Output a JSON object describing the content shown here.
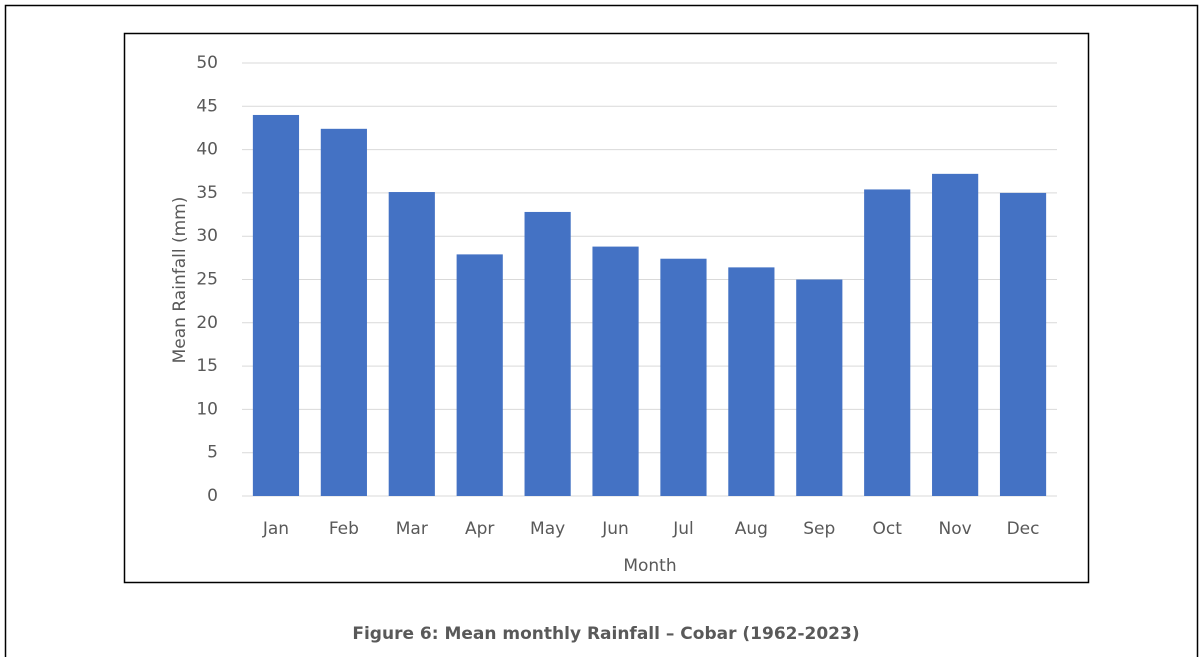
{
  "chart_data": {
    "type": "bar",
    "x_label": "Month",
    "y_label": "Mean Rainfall (mm)",
    "categories": [
      "Jan",
      "Feb",
      "Mar",
      "Apr",
      "May",
      "Jun",
      "Jul",
      "Aug",
      "Sep",
      "Oct",
      "Nov",
      "Dec"
    ],
    "values": [
      44.0,
      42.4,
      35.1,
      27.9,
      32.8,
      28.8,
      27.4,
      26.4,
      25.0,
      35.4,
      37.2,
      35.0
    ],
    "color": "#4472c4",
    "ylim": [
      0,
      50
    ],
    "yticks": [
      0,
      5,
      10,
      15,
      20,
      25,
      30,
      35,
      40,
      45,
      50
    ],
    "grid": true
  },
  "caption": "Figure 6: Mean monthly Rainfall – Cobar (1962-2023)"
}
